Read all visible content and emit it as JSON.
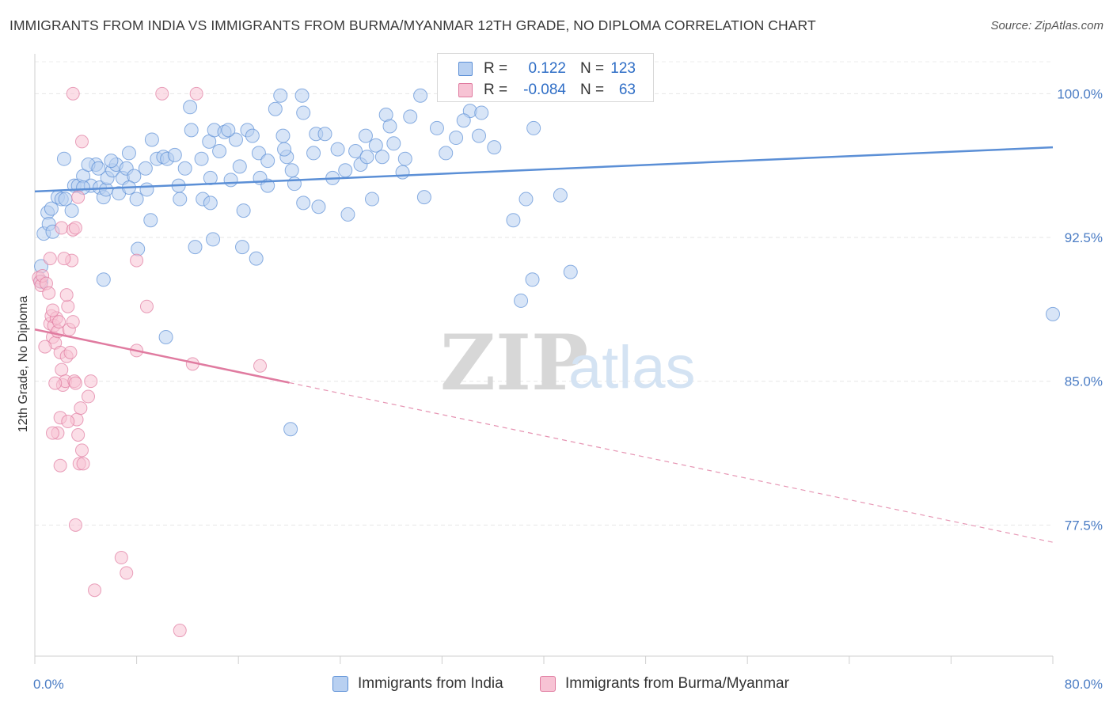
{
  "title": "IMMIGRANTS FROM INDIA VS IMMIGRANTS FROM BURMA/MYANMAR 12TH GRADE, NO DIPLOMA CORRELATION CHART",
  "source": "Source: ZipAtlas.com",
  "watermark": {
    "zip": "ZIP",
    "atlas": "atlas"
  },
  "stats": {
    "r_label": "R =",
    "n_label": "N =",
    "rows": [
      {
        "r": "0.122",
        "n": "123",
        "color": "#5b8fd6",
        "fill": "#b8d0f1"
      },
      {
        "r": "-0.084",
        "n": "63",
        "color": "#e07ba0",
        "fill": "#f7c3d4"
      }
    ]
  },
  "legend": [
    {
      "label": "Immigrants from India",
      "color": "#5b8fd6",
      "fill": "#b8d0f1"
    },
    {
      "label": "Immigrants from Burma/Myanmar",
      "color": "#e07ba0",
      "fill": "#f7c3d4"
    }
  ],
  "chart_data": {
    "type": "scatter",
    "title": "IMMIGRANTS FROM INDIA VS IMMIGRANTS FROM BURMA/MYANMAR 12TH GRADE, NO DIPLOMA CORRELATION CHART",
    "xlabel": "",
    "ylabel": "12th Grade, No Diploma",
    "xlim": [
      0,
      80
    ],
    "ylim": [
      70.0,
      101.5
    ],
    "x_tick_labels": [
      "0.0%",
      "80.0%"
    ],
    "y_ticks": [
      77.5,
      85.0,
      92.5,
      100.0
    ],
    "y_tick_labels": [
      "77.5%",
      "85.0%",
      "92.5%",
      "100.0%"
    ],
    "grid": true,
    "legend_position": "bottom",
    "series": [
      {
        "name": "Immigrants from India",
        "color": "#5b8fd6",
        "fill": "#b8d0f1",
        "trend": {
          "x": [
            0,
            80
          ],
          "y": [
            94.9,
            97.2
          ],
          "dashed_from": null
        },
        "points": [
          [
            0.5,
            91.0
          ],
          [
            0.5,
            90.2
          ],
          [
            0.7,
            92.7
          ],
          [
            1.0,
            93.8
          ],
          [
            1.1,
            93.2
          ],
          [
            1.3,
            94.0
          ],
          [
            1.4,
            92.8
          ],
          [
            1.8,
            94.6
          ],
          [
            2.1,
            94.5
          ],
          [
            2.4,
            94.5
          ],
          [
            2.9,
            93.9
          ],
          [
            3.1,
            95.2
          ],
          [
            3.4,
            95.2
          ],
          [
            3.8,
            95.7
          ],
          [
            4.4,
            95.2
          ],
          [
            4.8,
            96.3
          ],
          [
            5.1,
            95.1
          ],
          [
            5.4,
            94.6
          ],
          [
            5.6,
            95.0
          ],
          [
            5.7,
            95.6
          ],
          [
            6.1,
            96.0
          ],
          [
            6.4,
            96.3
          ],
          [
            6.6,
            94.8
          ],
          [
            6.9,
            95.6
          ],
          [
            7.2,
            96.1
          ],
          [
            7.4,
            96.9
          ],
          [
            7.8,
            95.7
          ],
          [
            8.0,
            94.5
          ],
          [
            8.8,
            95.0
          ],
          [
            9.2,
            97.6
          ],
          [
            9.6,
            96.6
          ],
          [
            10.1,
            96.7
          ],
          [
            10.4,
            96.6
          ],
          [
            11.0,
            96.8
          ],
          [
            11.4,
            94.5
          ],
          [
            11.8,
            96.1
          ],
          [
            12.2,
            99.3
          ],
          [
            12.3,
            98.1
          ],
          [
            13.1,
            96.6
          ],
          [
            13.2,
            94.5
          ],
          [
            13.7,
            97.5
          ],
          [
            13.8,
            95.6
          ],
          [
            14.1,
            98.1
          ],
          [
            14.5,
            97.0
          ],
          [
            14.9,
            98.0
          ],
          [
            15.4,
            95.5
          ],
          [
            15.8,
            97.6
          ],
          [
            16.1,
            96.2
          ],
          [
            16.4,
            93.9
          ],
          [
            16.7,
            98.1
          ],
          [
            17.1,
            97.8
          ],
          [
            17.6,
            96.9
          ],
          [
            17.7,
            95.6
          ],
          [
            18.3,
            96.5
          ],
          [
            18.9,
            99.2
          ],
          [
            19.3,
            99.9
          ],
          [
            19.5,
            97.8
          ],
          [
            19.8,
            96.7
          ],
          [
            20.2,
            96.0
          ],
          [
            20.4,
            95.3
          ],
          [
            21.0,
            99.9
          ],
          [
            21.1,
            99.0
          ],
          [
            21.9,
            96.9
          ],
          [
            22.1,
            97.9
          ],
          [
            22.8,
            97.9
          ],
          [
            23.4,
            95.6
          ],
          [
            24.4,
            96.0
          ],
          [
            24.6,
            93.7
          ],
          [
            25.2,
            97.0
          ],
          [
            25.6,
            96.3
          ],
          [
            26.1,
            96.7
          ],
          [
            26.5,
            94.5
          ],
          [
            26.8,
            97.3
          ],
          [
            27.6,
            98.9
          ],
          [
            27.9,
            98.3
          ],
          [
            28.2,
            97.4
          ],
          [
            29.1,
            96.6
          ],
          [
            29.5,
            98.8
          ],
          [
            30.3,
            99.9
          ],
          [
            30.6,
            94.6
          ],
          [
            32.3,
            96.9
          ],
          [
            33.1,
            97.7
          ],
          [
            34.2,
            99.1
          ],
          [
            35.1,
            99.0
          ],
          [
            36.1,
            97.2
          ],
          [
            37.6,
            93.4
          ],
          [
            38.6,
            94.5
          ],
          [
            39.2,
            98.2
          ],
          [
            39.1,
            90.3
          ],
          [
            41.3,
            94.7
          ],
          [
            42.1,
            90.7
          ],
          [
            38.2,
            89.2
          ],
          [
            20.1,
            82.5
          ],
          [
            8.1,
            91.9
          ],
          [
            9.1,
            93.4
          ],
          [
            5.4,
            90.3
          ],
          [
            10.3,
            87.3
          ],
          [
            12.6,
            92.0
          ],
          [
            14.0,
            92.4
          ],
          [
            16.3,
            92.0
          ],
          [
            17.4,
            91.4
          ],
          [
            2.3,
            96.6
          ],
          [
            3.8,
            95.1
          ],
          [
            4.2,
            96.3
          ],
          [
            5.0,
            96.1
          ],
          [
            6.0,
            96.5
          ],
          [
            7.4,
            95.1
          ],
          [
            8.7,
            96.1
          ],
          [
            11.3,
            95.2
          ],
          [
            13.8,
            94.3
          ],
          [
            15.2,
            98.1
          ],
          [
            18.3,
            95.2
          ],
          [
            19.6,
            97.1
          ],
          [
            21.1,
            94.3
          ],
          [
            22.3,
            94.1
          ],
          [
            23.8,
            97.1
          ],
          [
            26.0,
            97.8
          ],
          [
            27.3,
            96.7
          ],
          [
            28.9,
            95.9
          ],
          [
            31.6,
            98.2
          ],
          [
            33.7,
            98.6
          ],
          [
            34.9,
            97.8
          ],
          [
            80.0,
            88.5
          ]
        ]
      },
      {
        "name": "Immigrants from Burma/Myanmar",
        "color": "#e07ba0",
        "fill": "#f7c3d4",
        "trend": {
          "x": [
            0,
            80
          ],
          "y": [
            87.7,
            76.6
          ],
          "dashed_from": 20
        },
        "points": [
          [
            0.3,
            90.4
          ],
          [
            0.4,
            90.2
          ],
          [
            0.5,
            90.0
          ],
          [
            0.6,
            90.5
          ],
          [
            0.9,
            90.1
          ],
          [
            1.1,
            89.6
          ],
          [
            1.2,
            88.0
          ],
          [
            1.3,
            88.4
          ],
          [
            1.4,
            87.3
          ],
          [
            1.5,
            87.9
          ],
          [
            1.6,
            87.0
          ],
          [
            1.7,
            88.3
          ],
          [
            1.8,
            87.6
          ],
          [
            1.9,
            88.1
          ],
          [
            2.0,
            86.5
          ],
          [
            2.1,
            85.6
          ],
          [
            2.2,
            84.8
          ],
          [
            2.4,
            85.0
          ],
          [
            2.5,
            86.3
          ],
          [
            2.6,
            88.9
          ],
          [
            2.7,
            87.7
          ],
          [
            2.8,
            86.5
          ],
          [
            2.9,
            91.3
          ],
          [
            3.0,
            88.1
          ],
          [
            3.1,
            85.0
          ],
          [
            3.2,
            84.9
          ],
          [
            3.3,
            83.0
          ],
          [
            3.4,
            82.2
          ],
          [
            3.5,
            80.7
          ],
          [
            3.6,
            83.6
          ],
          [
            3.7,
            81.4
          ],
          [
            3.8,
            80.7
          ],
          [
            4.2,
            84.2
          ],
          [
            4.4,
            85.0
          ],
          [
            1.2,
            91.4
          ],
          [
            1.4,
            88.7
          ],
          [
            1.6,
            84.9
          ],
          [
            1.8,
            82.3
          ],
          [
            2.0,
            80.6
          ],
          [
            2.1,
            93.0
          ],
          [
            2.3,
            91.4
          ],
          [
            2.5,
            89.5
          ],
          [
            3.0,
            92.9
          ],
          [
            3.2,
            93.0
          ],
          [
            3.4,
            94.6
          ],
          [
            3.7,
            97.5
          ],
          [
            3.0,
            100.0
          ],
          [
            10.0,
            100.0
          ],
          [
            12.7,
            100.0
          ],
          [
            8.0,
            91.3
          ],
          [
            8.8,
            88.9
          ],
          [
            8.0,
            86.6
          ],
          [
            12.4,
            85.9
          ],
          [
            17.7,
            85.8
          ],
          [
            6.8,
            75.8
          ],
          [
            7.2,
            75.0
          ],
          [
            4.7,
            74.1
          ],
          [
            3.2,
            77.5
          ],
          [
            11.4,
            72.0
          ],
          [
            2.0,
            83.1
          ],
          [
            2.6,
            82.9
          ],
          [
            1.4,
            82.3
          ],
          [
            0.8,
            86.8
          ]
        ]
      }
    ]
  }
}
